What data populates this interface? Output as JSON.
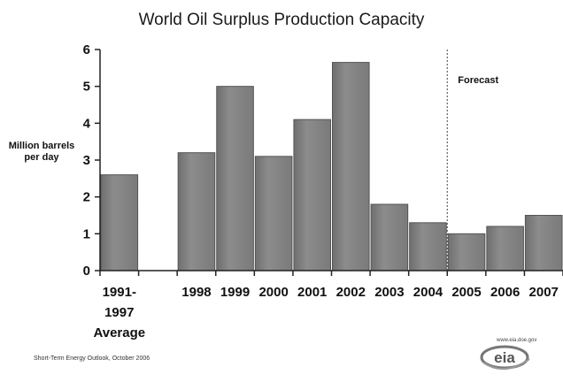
{
  "chart_data": {
    "type": "bar",
    "title": "World Oil Surplus Production Capacity",
    "ylabel": "Million barrels per day",
    "xlabel": "",
    "ylim": [
      0,
      6
    ],
    "yticks": [
      0,
      1,
      2,
      3,
      4,
      5,
      6
    ],
    "grid": false,
    "bar_color": "#8c8c8c",
    "categories": [
      [
        "1991-",
        "1997",
        "Average"
      ],
      [
        "(blank)"
      ],
      [
        "1998"
      ],
      [
        "1999"
      ],
      [
        "2000"
      ],
      [
        "2001"
      ],
      [
        "2002"
      ],
      [
        "2003"
      ],
      [
        "2004"
      ],
      [
        "2005"
      ],
      [
        "2006"
      ],
      [
        "2007"
      ]
    ],
    "values": [
      2.6,
      null,
      3.2,
      5.0,
      3.1,
      4.1,
      5.65,
      1.8,
      1.3,
      1.0,
      1.2,
      1.5
    ],
    "annotations": [
      {
        "text": "Forecast",
        "after_category_index": 9
      }
    ]
  },
  "footer": {
    "source": "Short-Term Energy Outlook, October 2006"
  },
  "logo": {
    "text": "eia",
    "url": "www.eia.doe.gov"
  }
}
